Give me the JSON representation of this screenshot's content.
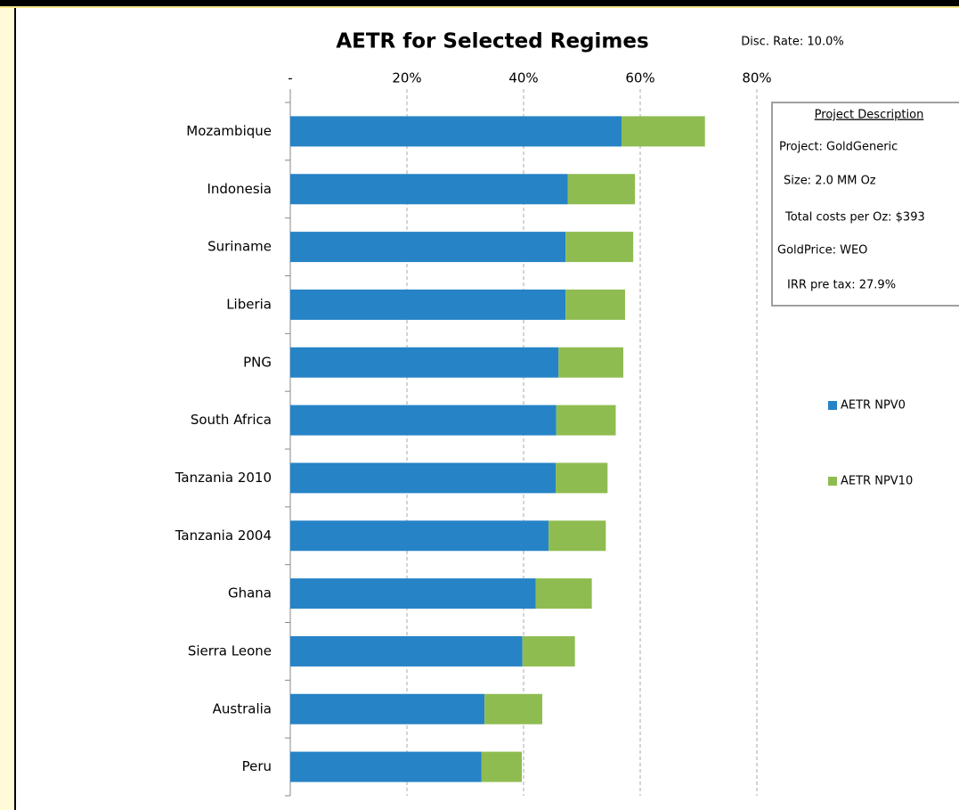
{
  "chart_data": {
    "type": "stacked-barh",
    "title": "AETR for Selected Regimes",
    "annotation": "Disc. Rate: 10.0%",
    "project_description": {
      "title": "Project Description",
      "lines": [
        "Project: GoldGeneric",
        "Size: 2.0 MM Oz",
        "Total costs per Oz: $393",
        "GoldPrice: WEO",
        "IRR pre tax: 27.9%"
      ]
    },
    "categories": [
      "Mozambique",
      "Indonesia",
      "Suriname",
      "Liberia",
      "PNG",
      "South Africa",
      "Tanzania 2010",
      "Tanzania 2004",
      "Ghana",
      "Sierra Leone",
      "Australia",
      "Peru"
    ],
    "series": [
      {
        "name": "AETR NPV0",
        "color": "#2683c6",
        "values": [
          56.8,
          47.6,
          47.2,
          47.2,
          46.0,
          45.6,
          45.5,
          44.3,
          42.1,
          39.8,
          33.3,
          32.8
        ]
      },
      {
        "name": "AETR NPV10",
        "color": "#8fbc50",
        "values": [
          14.3,
          11.5,
          11.6,
          10.2,
          11.1,
          10.2,
          8.9,
          9.8,
          9.6,
          9.0,
          9.9,
          6.9
        ]
      }
    ],
    "xlim": [
      0,
      80
    ],
    "xticks": [
      {
        "value": 0,
        "label": "-"
      },
      {
        "value": 20,
        "label": "20%"
      },
      {
        "value": 40,
        "label": "40%"
      },
      {
        "value": 60,
        "label": "60%"
      },
      {
        "value": 80,
        "label": "80%"
      }
    ],
    "grid": true,
    "legend": "right"
  }
}
